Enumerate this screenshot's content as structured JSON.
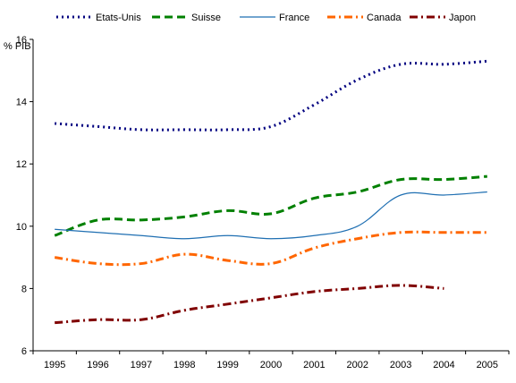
{
  "chart_data": {
    "type": "line",
    "ylabel": "% PIB",
    "xlabel": "",
    "title": "",
    "x": [
      "1995",
      "1996",
      "1997",
      "1998",
      "1999",
      "2000",
      "2001",
      "2002",
      "2003",
      "2004",
      "2005"
    ],
    "ylim": [
      6,
      16
    ],
    "yticks": [
      6,
      8,
      10,
      12,
      14,
      16
    ],
    "grid": false,
    "legend_position": "top",
    "series": [
      {
        "name": "Etats-Unis",
        "color": "#000080",
        "dash": "dotted",
        "values": [
          13.3,
          13.2,
          13.1,
          13.1,
          13.1,
          13.2,
          13.9,
          14.7,
          15.2,
          15.2,
          15.3
        ]
      },
      {
        "name": "Suisse",
        "color": "#008000",
        "dash": "dashed",
        "values": [
          9.7,
          10.2,
          10.2,
          10.3,
          10.5,
          10.4,
          10.9,
          11.1,
          11.5,
          11.5,
          11.6
        ]
      },
      {
        "name": "France",
        "color": "#1f6fb2",
        "dash": "solid",
        "values": [
          9.9,
          9.8,
          9.7,
          9.6,
          9.7,
          9.6,
          9.7,
          10.0,
          11.0,
          11.0,
          11.1
        ]
      },
      {
        "name": "Canada",
        "color": "#ff6600",
        "dash": "dashdot",
        "values": [
          9.0,
          8.8,
          8.8,
          9.1,
          8.9,
          8.8,
          9.3,
          9.6,
          9.8,
          9.8,
          9.8
        ]
      },
      {
        "name": "Japon",
        "color": "#800000",
        "dash": "dashdot",
        "values": [
          6.9,
          7.0,
          7.0,
          7.3,
          7.5,
          7.7,
          7.9,
          8.0,
          8.1,
          8.0,
          null
        ]
      }
    ]
  }
}
